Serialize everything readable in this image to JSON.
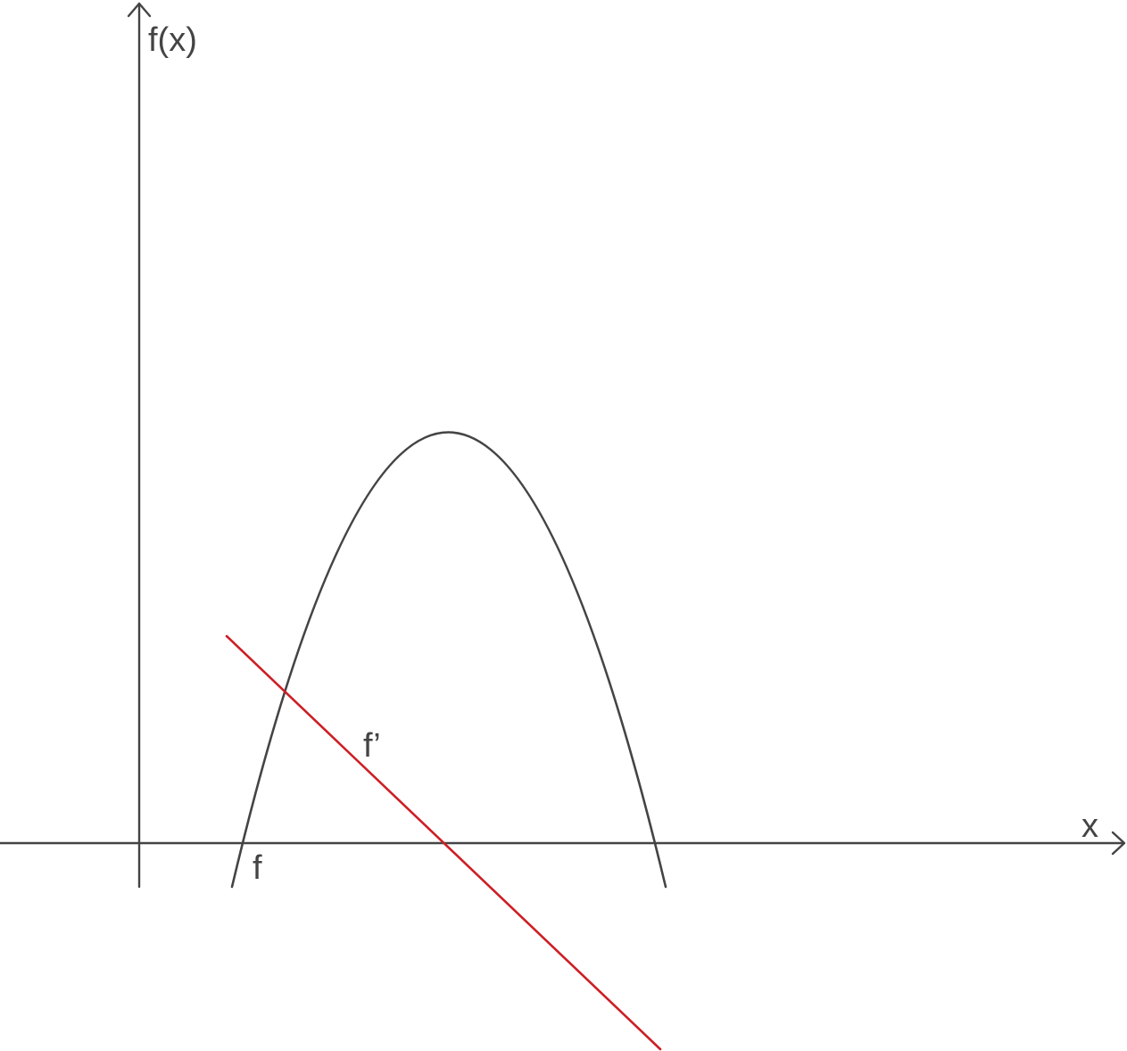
{
  "axes": {
    "x_label": "x",
    "y_label": "f(x)"
  },
  "curves": {
    "f_label": "f",
    "f_prime_label": "f’"
  },
  "colors": {
    "axis": "#444444",
    "f_curve": "#444444",
    "f_prime_line": "#cc1f25",
    "text": "#444444"
  }
}
